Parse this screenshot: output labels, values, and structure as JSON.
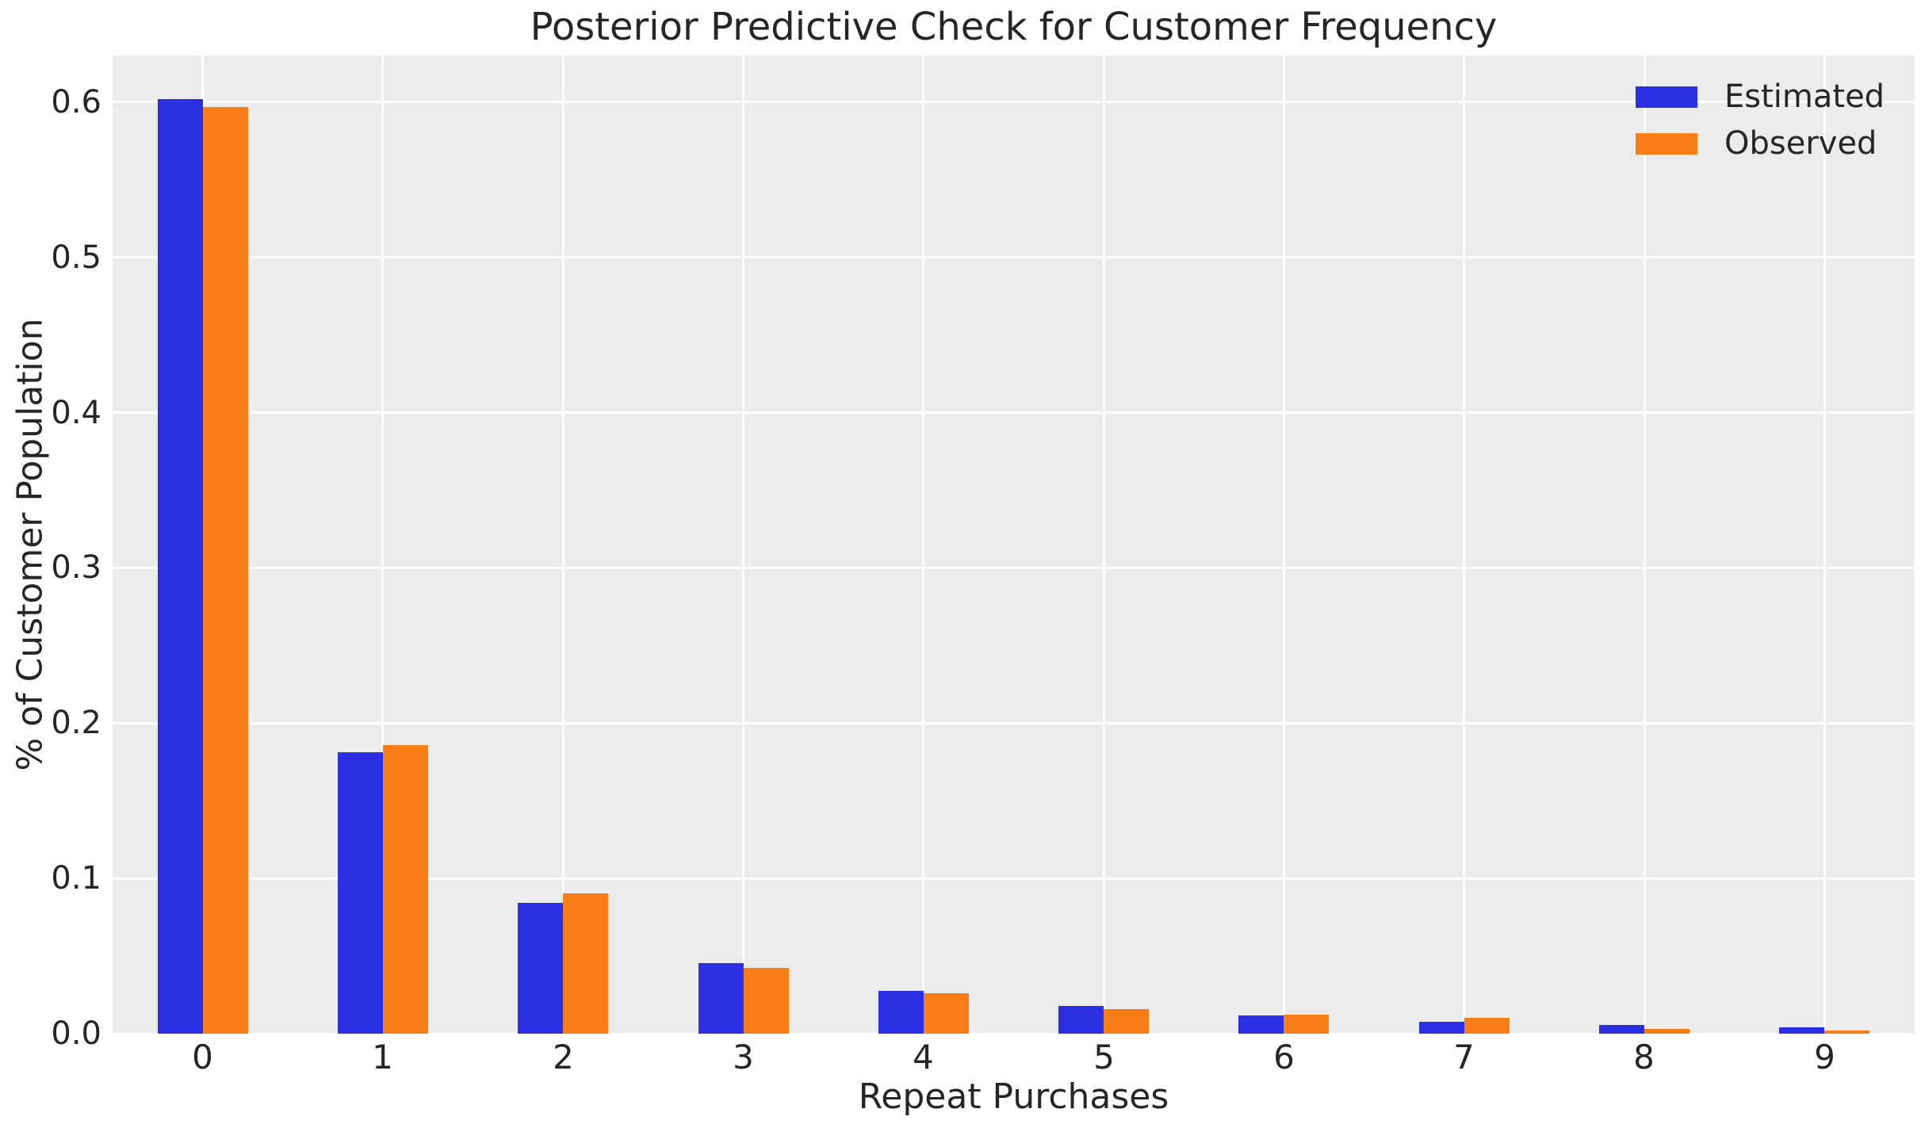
{
  "chart_data": {
    "type": "bar",
    "title": "Posterior Predictive Check for Customer Frequency",
    "xlabel": "Repeat Purchases",
    "ylabel": "% of Customer Population",
    "categories": [
      "0",
      "1",
      "2",
      "3",
      "4",
      "5",
      "6",
      "7",
      "8",
      "9"
    ],
    "series": [
      {
        "name": "Estimated",
        "color": "#2b30e3",
        "values": [
          0.602,
          0.181,
          0.084,
          0.0455,
          0.0277,
          0.0179,
          0.0117,
          0.0078,
          0.0056,
          0.0042
        ]
      },
      {
        "name": "Observed",
        "color": "#f97d17",
        "values": [
          0.597,
          0.186,
          0.0905,
          0.0425,
          0.0262,
          0.0159,
          0.0124,
          0.0102,
          0.0032,
          0.0021
        ]
      }
    ],
    "ylim": [
      0,
      0.63
    ],
    "yticks": [
      0.0,
      0.1,
      0.2,
      0.3,
      0.4,
      0.5,
      0.6
    ],
    "ytick_labels": [
      "0.0",
      "0.1",
      "0.2",
      "0.3",
      "0.4",
      "0.5",
      "0.6"
    ],
    "grid": true,
    "legend_position": "upper right",
    "colors": {
      "plot_background": "#ececec",
      "figure_background": "#ffffff",
      "gridline": "#ffffff",
      "text": "#262626"
    }
  }
}
